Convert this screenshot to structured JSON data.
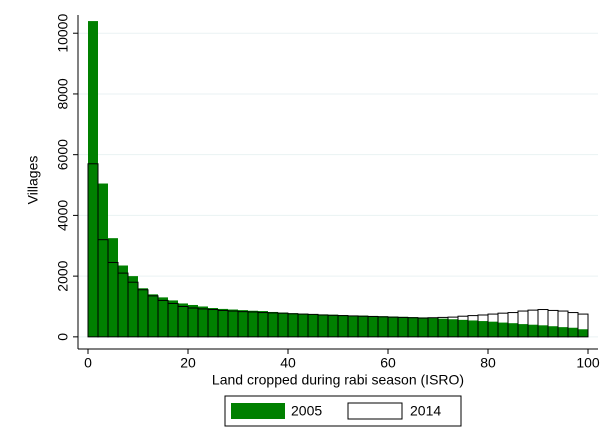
{
  "chart_data": {
    "type": "histogram",
    "xlabel": "Land cropped during rabi season (ISRO)",
    "ylabel": "Villages",
    "bins": [
      0,
      2,
      4,
      6,
      8,
      10,
      12,
      14,
      16,
      18,
      20,
      22,
      24,
      26,
      28,
      30,
      32,
      34,
      36,
      38,
      40,
      42,
      44,
      46,
      48,
      50,
      52,
      54,
      56,
      58,
      60,
      62,
      64,
      66,
      68,
      70,
      72,
      74,
      76,
      78,
      80,
      82,
      84,
      86,
      88,
      90,
      92,
      94,
      96,
      98,
      100
    ],
    "series": [
      {
        "name": "2005",
        "color": "#008000",
        "values": [
          10400,
          5050,
          3250,
          2350,
          2000,
          1600,
          1400,
          1300,
          1200,
          1100,
          1050,
          1000,
          950,
          920,
          900,
          880,
          860,
          850,
          820,
          800,
          780,
          760,
          750,
          740,
          730,
          720,
          700,
          700,
          690,
          680,
          670,
          660,
          650,
          640,
          620,
          600,
          580,
          560,
          540,
          520,
          500,
          470,
          450,
          420,
          400,
          380,
          350,
          320,
          300,
          250
        ]
      },
      {
        "name": "2014",
        "color": "#000000",
        "values": [
          5700,
          3200,
          2450,
          2100,
          1800,
          1550,
          1350,
          1200,
          1100,
          1000,
          950,
          920,
          900,
          870,
          850,
          830,
          820,
          800,
          790,
          780,
          760,
          750,
          740,
          720,
          710,
          700,
          690,
          680,
          670,
          660,
          650,
          640,
          630,
          620,
          630,
          640,
          650,
          680,
          700,
          720,
          750,
          780,
          800,
          850,
          880,
          900,
          870,
          850,
          800,
          750
        ]
      }
    ],
    "xlim": [
      -2,
      102
    ],
    "ylim": [
      -400,
      10600
    ],
    "xticks": [
      0,
      20,
      40,
      60,
      80,
      100
    ],
    "yticks": [
      0,
      2000,
      4000,
      6000,
      8000,
      10000
    ],
    "grid": true,
    "legend": "bottom"
  }
}
